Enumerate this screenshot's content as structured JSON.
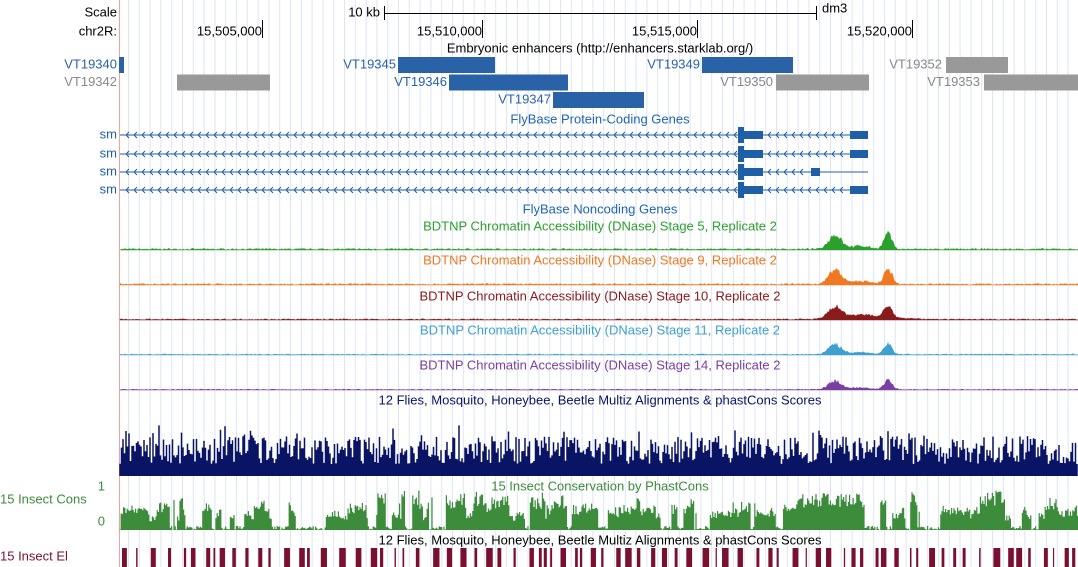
{
  "ruler": {
    "scale": "Scale",
    "scale_bar": "10 kb",
    "assembly": "dm3",
    "chrom": "chr2R:",
    "positions": [
      "15,505,000",
      "15,510,000",
      "15,515,000",
      "15,520,000"
    ]
  },
  "enhancers": {
    "title": "Embryonic enhancers (http://enhancers.starklab.org/)",
    "items": [
      "VT19340",
      "VT19342",
      "VT19345",
      "VT19346",
      "VT19347",
      "VT19349",
      "VT19350",
      "VT19352",
      "VT19353"
    ]
  },
  "genes": {
    "title": "FlyBase Protein-Coding Genes",
    "items": [
      "sm",
      "sm",
      "sm",
      "sm"
    ]
  },
  "noncoding": {
    "title": "FlyBase Noncoding Genes"
  },
  "dnase": [
    "BDTNP Chromatin Accessibility (DNase) Stage 5, Replicate 2",
    "BDTNP Chromatin Accessibility (DNase) Stage 9, Replicate 2",
    "BDTNP Chromatin Accessibility (DNase) Stage 10, Replicate 2",
    "BDTNP Chromatin Accessibility (DNase) Stage 11, Replicate 2",
    "BDTNP Chromatin Accessibility (DNase) Stage 14, Replicate 2"
  ],
  "multiz": {
    "title": "12 Flies, Mosquito, Honeybee, Beetle Multiz Alignments & phastCons Scores"
  },
  "phastcons": {
    "title": "15 Insect Conservation by PhastCons",
    "label": "15 Insect Cons",
    "max": 1,
    "min": 0
  },
  "elements": {
    "title": "12 Flies, Mosquito, Honeybee, Beetle Multiz Alignments & phastCons Scores",
    "label": "15 Insect El"
  }
}
